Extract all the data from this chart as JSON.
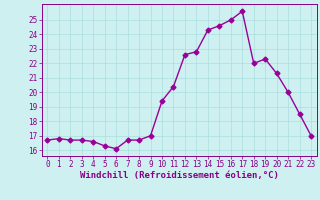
{
  "x": [
    0,
    1,
    2,
    3,
    4,
    5,
    6,
    7,
    8,
    9,
    10,
    11,
    12,
    13,
    14,
    15,
    16,
    17,
    18,
    19,
    20,
    21,
    22,
    23
  ],
  "y": [
    16.7,
    16.8,
    16.7,
    16.7,
    16.6,
    16.3,
    16.1,
    16.7,
    16.7,
    17.0,
    19.4,
    20.4,
    22.6,
    22.8,
    24.3,
    24.6,
    25.0,
    25.6,
    22.0,
    22.3,
    21.3,
    20.0,
    18.5,
    17.0
  ],
  "line_color": "#990099",
  "marker": "D",
  "markersize": 2.5,
  "linewidth": 1.0,
  "xlabel": "Windchill (Refroidissement éolien,°C)",
  "xlim": [
    -0.5,
    23.5
  ],
  "ylim": [
    15.6,
    26.1
  ],
  "yticks": [
    16,
    17,
    18,
    19,
    20,
    21,
    22,
    23,
    24,
    25
  ],
  "xticks": [
    0,
    1,
    2,
    3,
    4,
    5,
    6,
    7,
    8,
    9,
    10,
    11,
    12,
    13,
    14,
    15,
    16,
    17,
    18,
    19,
    20,
    21,
    22,
    23
  ],
  "grid_color": "#aadddd",
  "bg_color": "#cff0f0",
  "tick_color": "#880088",
  "tick_fontsize": 5.5,
  "xlabel_fontsize": 6.5,
  "xlabel_color": "#880088"
}
